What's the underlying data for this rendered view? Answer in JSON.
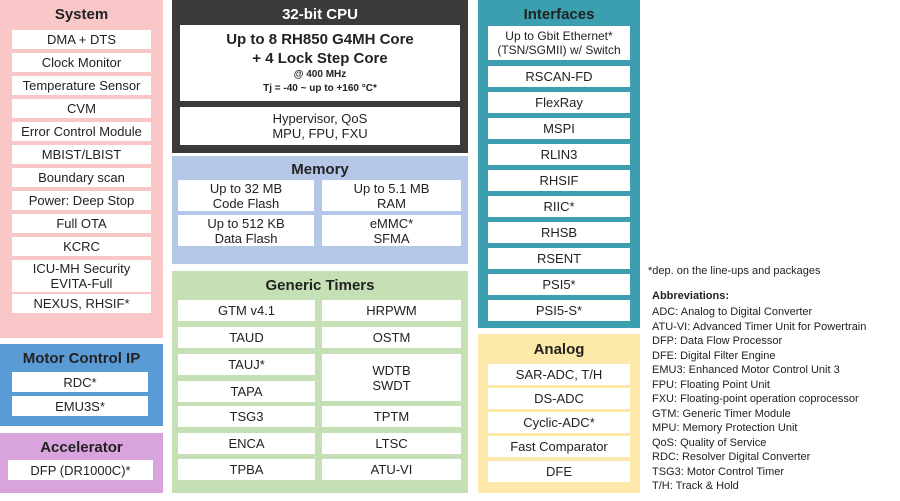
{
  "system": {
    "title": "System",
    "items": [
      "DMA + DTS",
      "Clock Monitor",
      "Temperature Sensor",
      "CVM",
      "Error Control Module",
      "MBIST/LBIST",
      "Boundary scan",
      "Power: Deep Stop",
      "Full OTA",
      "KCRC",
      "ICU-MH Security",
      "EVITA-Full",
      "NEXUS, RHSIF*"
    ]
  },
  "motor": {
    "title": "Motor Control IP",
    "items": [
      "RDC*",
      "EMU3S*"
    ]
  },
  "accelerator": {
    "title": "Accelerator",
    "items": [
      "DFP (DR1000C)*"
    ]
  },
  "cpu": {
    "title": "32-bit CPU",
    "core_line1": "Up to 8 RH850 G4MH Core",
    "core_line2": "+ 4 Lock Step Core",
    "freq": "@ 400 MHz",
    "temp": "Tj = -40 ~  up to +160 °C*",
    "hv_line1": "Hypervisor, QoS",
    "hv_line2": "MPU, FPU, FXU"
  },
  "memory": {
    "title": "Memory",
    "items": [
      [
        "Up to 32 MB",
        "Code Flash"
      ],
      [
        "Up to 5.1 MB",
        "RAM"
      ],
      [
        "Up to 512 KB",
        "Data Flash"
      ],
      [
        "eMMC*",
        "SFMA"
      ]
    ]
  },
  "timers": {
    "title": "Generic Timers",
    "left": [
      "GTM v4.1",
      "TAUD",
      "TAUJ*",
      "TAPA",
      "TSG3",
      "ENCA",
      "TPBA"
    ],
    "right": [
      "HRPWM",
      "OSTM",
      "WDTB",
      "SWDT",
      "TPTM",
      "LTSC",
      "ATU-VI"
    ]
  },
  "interfaces": {
    "title": "Interfaces",
    "eth_line1": "Up to Gbit Ethernet*",
    "eth_line2": "(TSN/SGMII) w/ Switch",
    "items": [
      "RSCAN-FD",
      "FlexRay",
      "MSPI",
      "RLIN3",
      "RHSIF",
      "RIIC*",
      "RHSB",
      "RSENT",
      "PSI5*",
      "PSI5-S*"
    ]
  },
  "analog": {
    "title": "Analog",
    "items": [
      "SAR-ADC, T/H",
      "DS-ADC",
      "Cyclic-ADC*",
      "Fast Comparator",
      "DFE"
    ]
  },
  "note": "*dep. on the line-ups  and packages",
  "abbreviations": {
    "title": "Abbreviations:",
    "items": [
      "ADC: Analog to Digital Converter",
      "ATU-VI: Advanced Timer Unit for Powertrain",
      "DFP: Data Flow Processor",
      "DFE: Digital Filter Engine",
      "EMU3: Enhanced  Motor Control Unit 3",
      "FPU: Floating Point Unit",
      "FXU: Floating-point operation coprocessor",
      "GTM: Generic Timer Module",
      "MPU: Memory Protection Unit",
      "QoS: Quality of Service",
      "RDC: Resolver Digital Converter",
      "TSG3: Motor Control Timer",
      "T/H: Track & Hold"
    ]
  },
  "colors": {
    "system": "#f9c7c8",
    "motor": "#5b9bd5",
    "accelerator": "#d9a3dd",
    "cpu": "#3a3a3a",
    "memory": "#b4c7e7",
    "timers": "#c5e0b4",
    "interfaces": "#3c9fb0",
    "analog": "#fde9a9"
  }
}
